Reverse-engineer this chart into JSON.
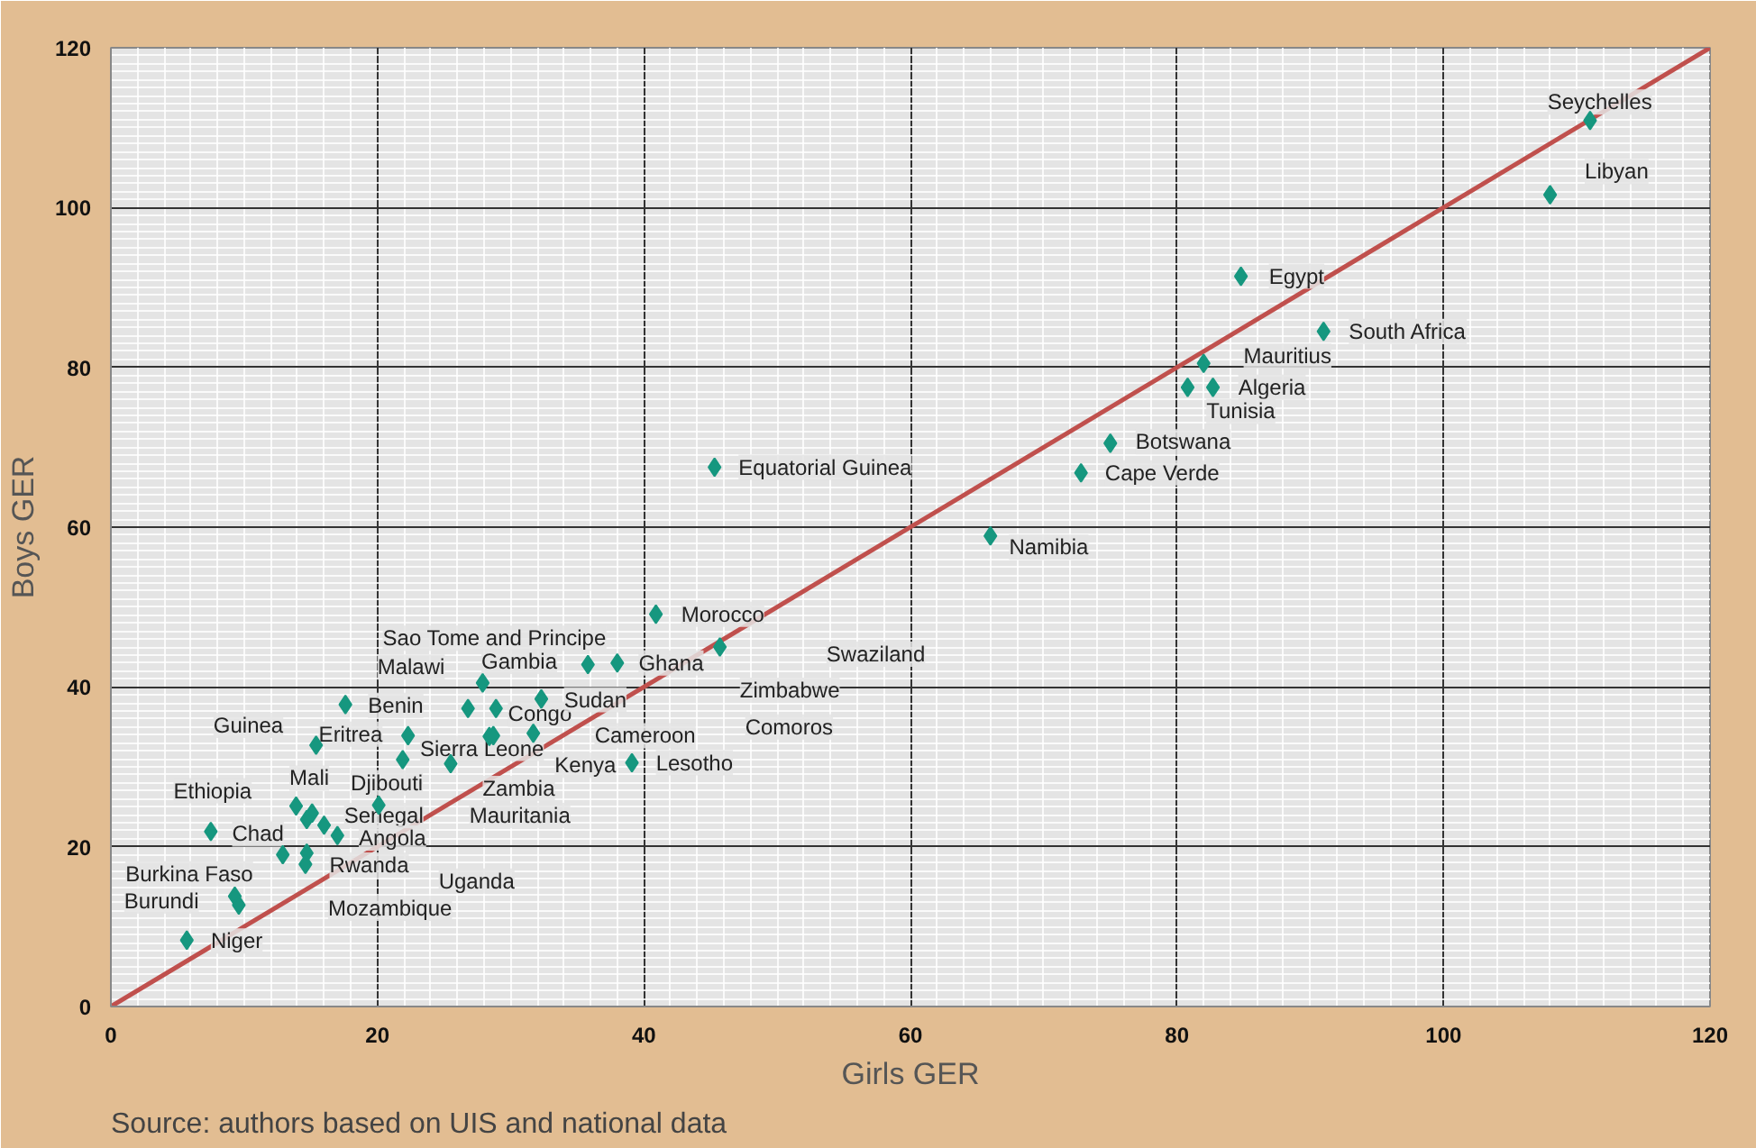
{
  "chart_data": {
    "type": "scatter",
    "xlabel": "Girls GER",
    "ylabel": "Boys GER",
    "xlim": [
      0,
      120
    ],
    "ylim": [
      0,
      120
    ],
    "xticks": [
      0,
      20,
      40,
      60,
      80,
      100,
      120
    ],
    "yticks": [
      0,
      20,
      40,
      60,
      80,
      100,
      120
    ],
    "grid": true,
    "marker": "diamond",
    "series": [
      {
        "type": "line",
        "marker": "none",
        "color": "#c0504d",
        "x": [
          0,
          120
        ],
        "values": [
          0,
          120
        ]
      },
      {
        "color": "#16977f",
        "x": [
          111.0,
          108.0,
          84.8,
          91.0,
          82.0,
          80.8,
          82.7,
          75.0,
          72.8,
          66.0,
          45.3,
          40.9,
          45.7,
          35.8,
          38.0,
          32.3,
          27.9,
          26.8,
          28.9,
          22.3,
          21.9,
          25.5,
          28.4,
          28.7,
          31.7,
          39.1,
          20.1,
          17.6,
          15.4,
          13.9,
          15.1,
          14.7,
          16.0,
          17.0,
          7.5,
          12.9,
          14.7,
          14.6,
          9.3,
          9.6,
          5.7
        ],
        "values": [
          110.9,
          101.6,
          91.4,
          84.5,
          80.5,
          77.5,
          77.5,
          70.5,
          66.8,
          58.9,
          67.5,
          49.1,
          45.0,
          42.8,
          43.0,
          38.5,
          40.5,
          37.3,
          37.3,
          33.9,
          30.9,
          30.4,
          33.8,
          33.9,
          34.2,
          30.5,
          25.2,
          37.8,
          32.7,
          25.1,
          24.2,
          23.4,
          22.7,
          21.4,
          21.9,
          19.0,
          19.2,
          17.8,
          13.8,
          12.7,
          8.3
        ]
      }
    ],
    "annotations": [
      "Source: authors based on UIS and national data",
      "Seychelles",
      "Libyan",
      "Egypt",
      "South Africa",
      "Mauritius",
      "Algeria",
      "Tunisia",
      "Botswana",
      "Cape Verde",
      "Namibia",
      "Equatorial Guinea",
      "Morocco",
      "Swaziland",
      "Zimbabwe",
      "Comoros",
      "Ghana",
      "Sao Tome and Principe",
      "Malawi",
      "Gambia",
      "Benin",
      "Congo",
      "Sudan",
      "Guinea",
      "Eritrea",
      "Sierra Leone",
      "Cameroon",
      "Kenya",
      "Lesotho",
      "Ethiopia",
      "Mali",
      "Djibouti",
      "Zambia",
      "Mauritania",
      "Senegal",
      "Chad",
      "Angola",
      "Rwanda",
      "Uganda",
      "Burkina Faso",
      "Burundi",
      "Mozambique",
      "Niger"
    ]
  }
}
